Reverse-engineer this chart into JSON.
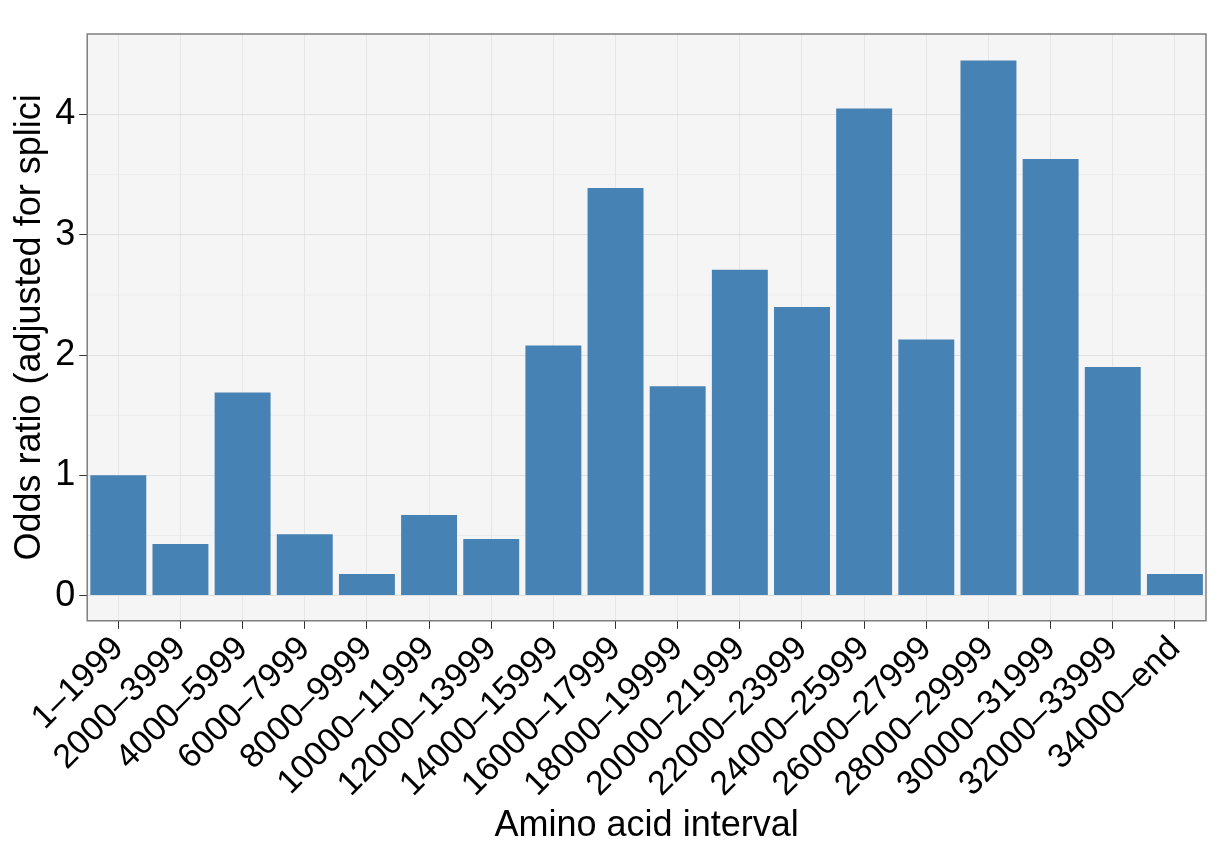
{
  "chart_data": {
    "type": "bar",
    "xlabel": "Amino acid interval",
    "ylabel": "Odds ratio (adjusted for splici",
    "categories": [
      "1–1999",
      "2000–3999",
      "4000–5999",
      "6000–7999",
      "8000–9999",
      "10000–11999",
      "12000–13999",
      "14000–15999",
      "16000–17999",
      "18000–19999",
      "20000–21999",
      "22000–23999",
      "24000–25999",
      "26000–27999",
      "28000–29999",
      "30000–31999",
      "32000–33999",
      "34000–end"
    ],
    "values": [
      1.0,
      0.43,
      1.69,
      0.51,
      0.18,
      0.67,
      0.47,
      2.08,
      3.39,
      1.74,
      2.71,
      2.4,
      4.05,
      2.13,
      4.45,
      3.63,
      1.9,
      0.18
    ],
    "color": "#4682b4",
    "ylim": [
      -0.21,
      4.67
    ],
    "yticks": [
      0,
      1,
      2,
      3,
      4
    ],
    "grid": true
  }
}
